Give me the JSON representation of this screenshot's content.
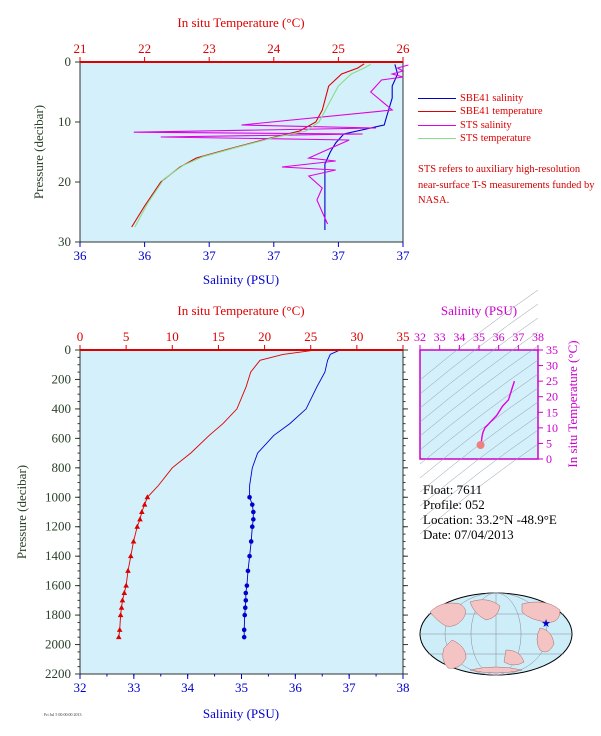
{
  "colors": {
    "panel_bg": "#d4f0fb",
    "salinity": "#0000cc",
    "temperature": "#dd0000",
    "sts_salinity": "#e000e0",
    "sts_temperature": "#88dd88",
    "pressure_axis": "#2a402a",
    "magenta_axis": "#cc00cc"
  },
  "top_chart": {
    "top_axis_label": "In situ Temperature (°C)",
    "bottom_axis_label": "Salinity (PSU)",
    "left_axis_label": "Pressure (decibar)",
    "temperature_ticks": [
      "21",
      "22",
      "23",
      "24",
      "25",
      "26"
    ],
    "salinity_ticks": [
      "36",
      "36",
      "37",
      "37",
      "37",
      "37"
    ],
    "pressure_ticks": [
      "0",
      "10",
      "20",
      "30"
    ],
    "legend": [
      {
        "label": "SBE41 salinity",
        "color": "#0000cc"
      },
      {
        "label": "SBE41 temperature",
        "color": "#dd0000"
      },
      {
        "label": "STS salinity",
        "color": "#e000e0"
      },
      {
        "label": "STS temperature",
        "color": "#88dd88"
      }
    ],
    "note": "STS refers to auxiliary high-resolution near-surface T-S measurements funded by NASA."
  },
  "main_chart": {
    "top_axis_label": "In situ Temperature (°C)",
    "bottom_axis_label": "Salinity (PSU)",
    "left_axis_label": "Pressure (decibar)",
    "temperature_ticks": [
      "0",
      "5",
      "10",
      "15",
      "20",
      "25",
      "30",
      "35"
    ],
    "salinity_ticks": [
      "32",
      "33",
      "34",
      "35",
      "36",
      "37",
      "38"
    ],
    "pressure_ticks": [
      "0",
      "200",
      "400",
      "600",
      "800",
      "1000",
      "1200",
      "1400",
      "1600",
      "1800",
      "2000",
      "2200"
    ]
  },
  "ts_chart": {
    "top_axis_label": "Salinity (PSU)",
    "right_axis_label": "In situ Temperature (°C)",
    "salinity_ticks": [
      "32",
      "33",
      "34",
      "35",
      "36",
      "37",
      "38"
    ],
    "temperature_ticks": [
      "0",
      "5",
      "10",
      "15",
      "20",
      "25",
      "30",
      "35"
    ]
  },
  "float_info": {
    "float": "Float:  7611",
    "profile": "Profile:  052",
    "location": "Location:  33.2°N  -48.9°E",
    "date": "Date:  07/04/2013"
  },
  "stamp": "Fri Jul 5 00:00:00 2013",
  "chart_data": [
    {
      "type": "line",
      "title": "",
      "xlabel_top": "In situ Temperature (°C)",
      "xlabel_bottom": "Salinity (PSU)",
      "ylabel": "Pressure (decibar)",
      "ylim": [
        0,
        30
      ],
      "temperature_lim": [
        21,
        26
      ],
      "salinity_lim": [
        36.0,
        37.2
      ],
      "series": [
        {
          "name": "SBE41 salinity",
          "color": "#0000cc",
          "x": [
            37.17,
            37.18,
            37.16,
            37.16,
            37.14,
            37.13,
            36.98,
            36.95,
            36.93,
            36.91,
            36.91,
            36.91,
            36.91
          ],
          "y": [
            0.4,
            2,
            4,
            6,
            9,
            10.5,
            12,
            13.5,
            15,
            17,
            20,
            24,
            28
          ]
        },
        {
          "name": "SBE41 temperature",
          "color": "#dd0000",
          "x": [
            25.4,
            25.3,
            25.05,
            24.85,
            24.8,
            24.75,
            24.65,
            24.4,
            23.9,
            23.3,
            22.8,
            22.55,
            22.25,
            22.0,
            21.8
          ],
          "y": [
            0.3,
            1,
            2,
            4,
            6,
            8,
            10,
            11.5,
            12.8,
            14.5,
            16,
            17.5,
            20,
            24,
            27.5
          ]
        },
        {
          "name": "STS salinity",
          "color": "#e000e0",
          "x": [
            37.22,
            37.18,
            37.2,
            37.16,
            37.2,
            37.12,
            37.08,
            37.16,
            36.6,
            37.1,
            36.2,
            37.05,
            36.3,
            37.0,
            36.95,
            36.9,
            36.85,
            36.95,
            36.75,
            36.95,
            36.85,
            36.9,
            36.88,
            36.9,
            36.92
          ],
          "y": [
            0.5,
            1,
            1.5,
            2,
            2.5,
            3,
            5,
            8,
            10.5,
            11,
            11.7,
            12,
            12.5,
            13,
            14,
            15,
            16,
            16.5,
            17.5,
            18,
            19,
            21,
            23,
            25,
            27
          ]
        },
        {
          "name": "STS temperature",
          "color": "#88dd88",
          "x": [
            25.5,
            25.4,
            25.2,
            25.0,
            24.9,
            24.8,
            24.7,
            24.5,
            24.0,
            23.4,
            22.9,
            22.6,
            22.3,
            22.05,
            21.85
          ],
          "y": [
            0.4,
            1,
            2,
            4,
            6,
            8,
            10,
            11.5,
            12.6,
            14.3,
            15.8,
            17.2,
            19.5,
            23.5,
            27.5
          ]
        }
      ]
    },
    {
      "type": "line",
      "title": "",
      "xlabel_top": "In situ Temperature (°C)",
      "xlabel_bottom": "Salinity (PSU)",
      "ylabel": "Pressure (decibar)",
      "ylim": [
        0,
        2200
      ],
      "temperature_lim": [
        0,
        35
      ],
      "salinity_lim": [
        32,
        38
      ],
      "series": [
        {
          "name": "temperature",
          "color": "#dd0000",
          "marker": "triangle",
          "x": [
            25.0,
            22.0,
            19.5,
            18.5,
            18.0,
            17.0,
            15.5,
            14.0,
            12.0,
            10.0,
            8.5,
            7.3,
            7.0,
            6.7,
            6.5,
            6.2,
            5.8,
            5.5,
            5.2,
            5.0,
            4.8,
            4.6,
            4.5,
            4.4,
            4.3,
            4.2
          ],
          "y": [
            5,
            30,
            70,
            150,
            250,
            400,
            500,
            580,
            700,
            800,
            920,
            1000,
            1050,
            1100,
            1150,
            1200,
            1300,
            1400,
            1500,
            1600,
            1650,
            1700,
            1750,
            1800,
            1900,
            1950
          ]
        },
        {
          "name": "salinity",
          "color": "#0000cc",
          "marker": "circle",
          "x": [
            36.8,
            36.65,
            36.6,
            36.55,
            36.4,
            36.2,
            35.9,
            35.6,
            35.3,
            35.2,
            35.15,
            35.15,
            35.2,
            35.22,
            35.22,
            35.2,
            35.18,
            35.15,
            35.12,
            35.1,
            35.08,
            35.08,
            35.07,
            35.06,
            35.05,
            35.05
          ],
          "y": [
            5,
            30,
            70,
            150,
            250,
            400,
            500,
            580,
            700,
            800,
            920,
            1000,
            1050,
            1100,
            1150,
            1200,
            1300,
            1400,
            1500,
            1600,
            1650,
            1700,
            1750,
            1800,
            1900,
            1950
          ]
        }
      ]
    },
    {
      "type": "scatter",
      "title": "",
      "xlabel": "Salinity (PSU)",
      "ylabel": "In situ Temperature (°C)",
      "xlim": [
        32,
        38
      ],
      "ylim": [
        0,
        35
      ],
      "series": [
        {
          "name": "T-S",
          "color": "#e000e0",
          "x": [
            36.8,
            36.65,
            36.5,
            36.2,
            35.9,
            35.6,
            35.3,
            35.2,
            35.15,
            35.12,
            35.08
          ],
          "y": [
            25.0,
            22.0,
            19.0,
            17.0,
            14.0,
            12.0,
            10.0,
            8.5,
            7.0,
            5.5,
            4.5
          ]
        }
      ]
    }
  ]
}
